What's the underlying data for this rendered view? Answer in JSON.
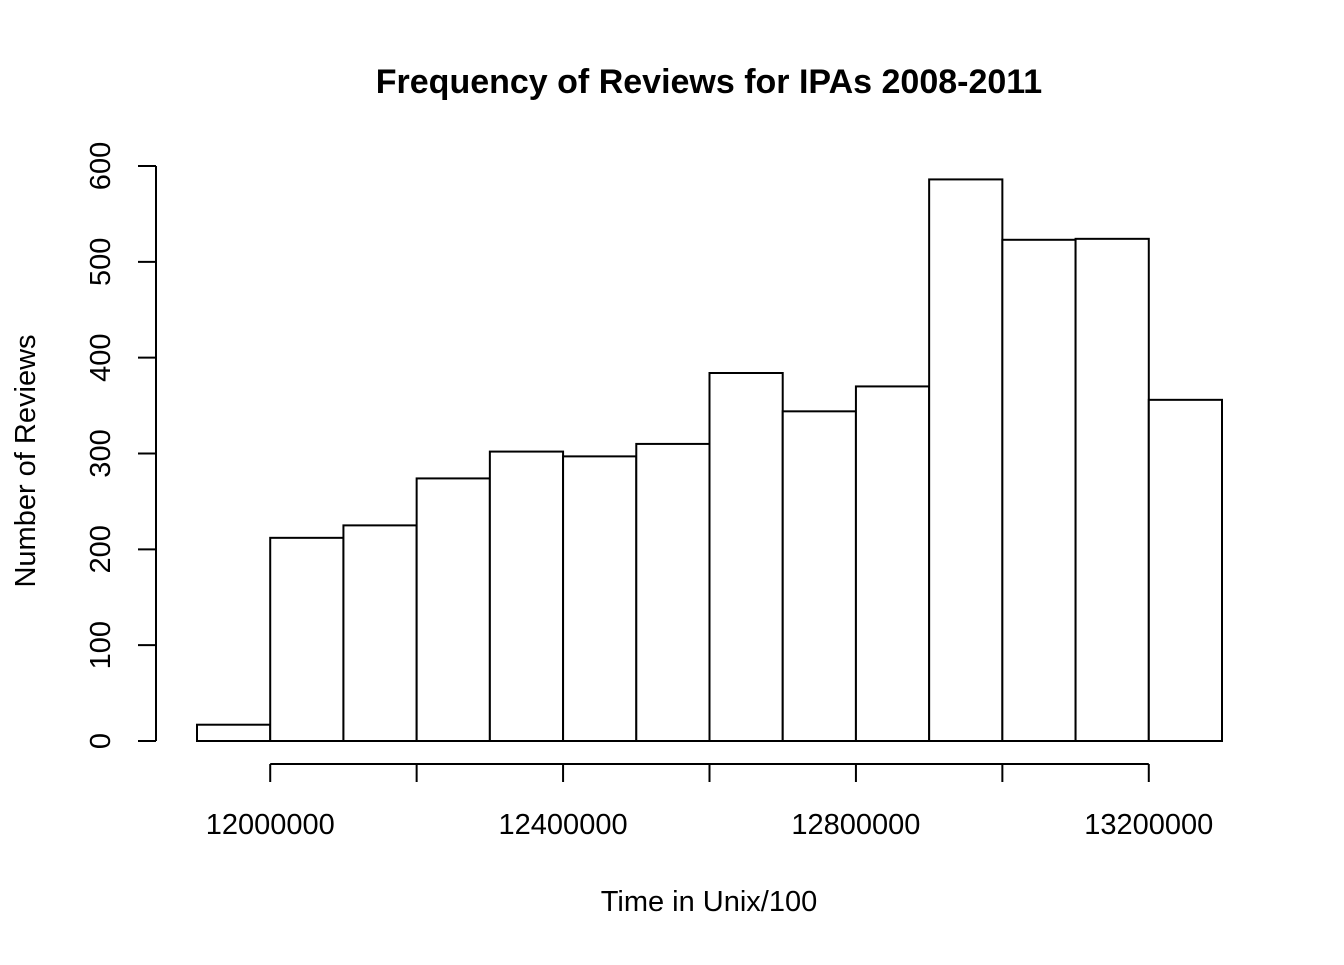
{
  "chart_data": {
    "type": "bar",
    "title": "Frequency of Reviews for IPAs 2008-2011",
    "xlabel": "Time in Unix/100",
    "ylabel": "Number of Reviews",
    "bin_edges": [
      11900000,
      12000000,
      12100000,
      12200000,
      12300000,
      12400000,
      12500000,
      12600000,
      12700000,
      12800000,
      12900000,
      13000000,
      13100000,
      13200000,
      13300000
    ],
    "values": [
      17,
      212,
      225,
      274,
      302,
      297,
      310,
      384,
      344,
      370,
      586,
      523,
      524,
      356
    ],
    "xlim": [
      11900000,
      13300000
    ],
    "ylim": [
      0,
      600
    ],
    "x_axis_range": [
      12000000,
      13200000
    ],
    "x_ticks": [
      12000000,
      12200000,
      12400000,
      12600000,
      12800000,
      13000000,
      13200000
    ],
    "x_tick_labels": [
      "12000000",
      "",
      "12400000",
      "",
      "12800000",
      "",
      "13200000"
    ],
    "y_ticks": [
      0,
      100,
      200,
      300,
      400,
      500,
      600
    ],
    "y_tick_labels": [
      "0",
      "100",
      "200",
      "300",
      "400",
      "500",
      "600"
    ],
    "grid": false,
    "colors": {
      "bar_fill": "#ffffff",
      "bar_stroke": "#000000",
      "axis": "#000000"
    }
  }
}
